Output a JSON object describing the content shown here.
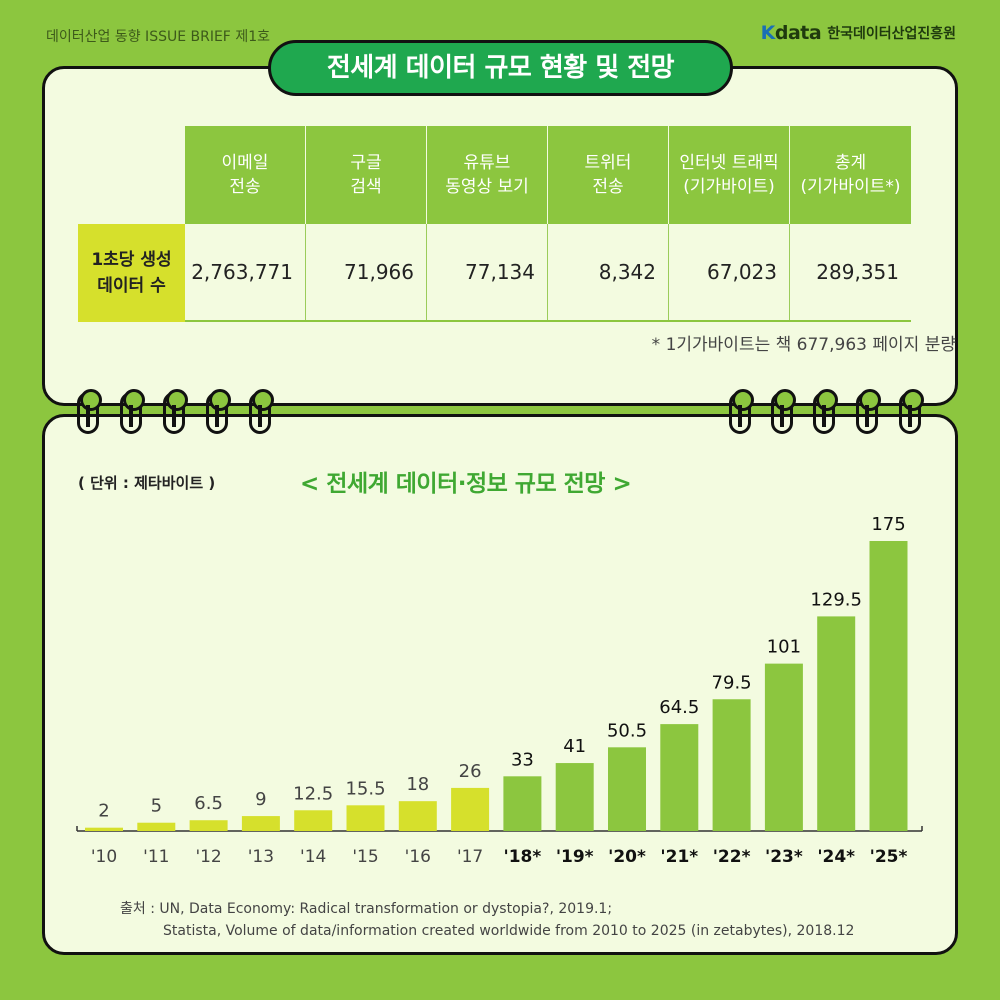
{
  "header": {
    "brief": "데이터산업 동향 ISSUE BRIEF 제1호",
    "logo_mark": "data",
    "logo_org": "한국데이터산업진흥원"
  },
  "title": "전세계 데이터 규모 현황 및 전망",
  "table": {
    "columns": [
      "이메일\n전송",
      "구글\n검색",
      "유튜브\n동영상 보기",
      "트위터\n전송",
      "인터넷 트래픽\n(기가바이트)",
      "총계\n(기가바이트*)"
    ],
    "row_label": "1초당 생성\n데이터 수",
    "values": [
      "2,763,771",
      "71,966",
      "77,134",
      "8,342",
      "67,023",
      "289,351"
    ],
    "note": "* 1기가바이트는 책 677,963 페이지 분량"
  },
  "colors": {
    "actual": "#d6e02c",
    "forecast": "#8cc63f",
    "accent": "#1fa84f",
    "bg": "#8cc63f",
    "panel": "#f3fbe0"
  },
  "chart_unit": "( 단위 : 제타바이트 )",
  "chart_title": "< 전세계 데이터·정보 규모 전망 >",
  "chart_data": {
    "type": "bar",
    "categories": [
      "'10",
      "'11",
      "'12",
      "'13",
      "'14",
      "'15",
      "'16",
      "'17",
      "'18*",
      "'19*",
      "'20*",
      "'21*",
      "'22*",
      "'23*",
      "'24*",
      "'25*"
    ],
    "values": [
      2,
      5,
      6.5,
      9,
      12.5,
      15.5,
      18,
      26,
      33,
      41,
      50.5,
      64.5,
      79.5,
      101,
      129.5,
      175
    ],
    "forecast": [
      false,
      false,
      false,
      false,
      false,
      false,
      false,
      false,
      true,
      true,
      true,
      true,
      true,
      true,
      true,
      true
    ],
    "ylim": [
      0,
      175
    ]
  },
  "source": {
    "line1": "출처 : UN, Data Economy: Radical transformation or dystopia?, 2019.1;",
    "line2": "Statista, Volume of data/information created worldwide from 2010 to 2025 (in zetabytes), 2018.12"
  }
}
